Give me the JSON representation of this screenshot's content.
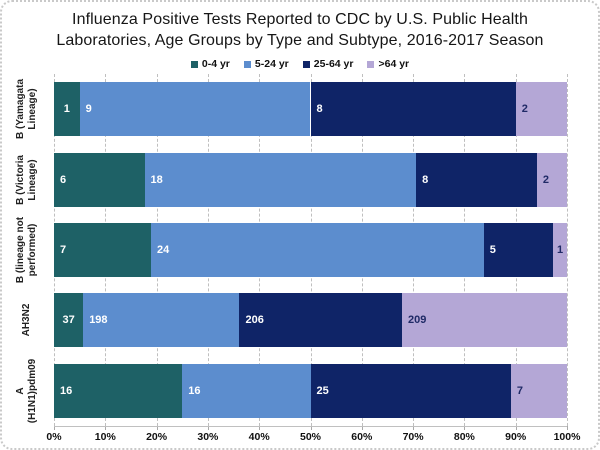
{
  "chart_data": {
    "type": "bar",
    "orientation": "horizontal",
    "stacking": "100%",
    "title": "Influenza Positive Tests Reported to CDC by U.S. Public Health Laboratories, Age Groups by Type and Subtype, 2016-2017 Season",
    "title_lines": [
      "Influenza Positive Tests Reported to CDC by U.S. Public Health",
      "Laboratories, Age Groups by Type and Subtype, 2016-2017 Season"
    ],
    "categories": [
      "B (Yamagata Lineage)",
      "B (Victoria Lineage)",
      "B (lineage not performed)",
      "AH3N2",
      "A (H1N1)pdm09"
    ],
    "category_label_lines": [
      [
        "B (Yamagata",
        "Lineage)"
      ],
      [
        "B (Victoria",
        "Lineage)"
      ],
      [
        "B (lineage not",
        "performed)"
      ],
      [
        "AH3N2"
      ],
      [
        "A",
        "(H1N1)pdm09"
      ]
    ],
    "series": [
      {
        "name": "0-4 yr",
        "color": "#1E6166",
        "label_color": "#FFFFFF",
        "values": [
          1,
          6,
          7,
          37,
          16
        ]
      },
      {
        "name": "5-24 yr",
        "color": "#5C8DCE",
        "label_color": "#FFFFFF",
        "values": [
          9,
          18,
          24,
          198,
          16
        ]
      },
      {
        "name": "25-64 yr",
        "color": "#0F2467",
        "label_color": "#FFFFFF",
        "values": [
          8,
          8,
          5,
          206,
          25
        ]
      },
      {
        "name": ">64 yr",
        "color": "#B4A7D6",
        "label_color": "#1F2A66",
        "values": [
          2,
          2,
          1,
          209,
          7
        ]
      }
    ],
    "x_ticks": [
      "0%",
      "10%",
      "20%",
      "30%",
      "40%",
      "50%",
      "60%",
      "70%",
      "80%",
      "90%",
      "100%"
    ],
    "xlim": [
      0,
      100
    ],
    "grid": "vertical-dashed",
    "legend_position": "top"
  }
}
